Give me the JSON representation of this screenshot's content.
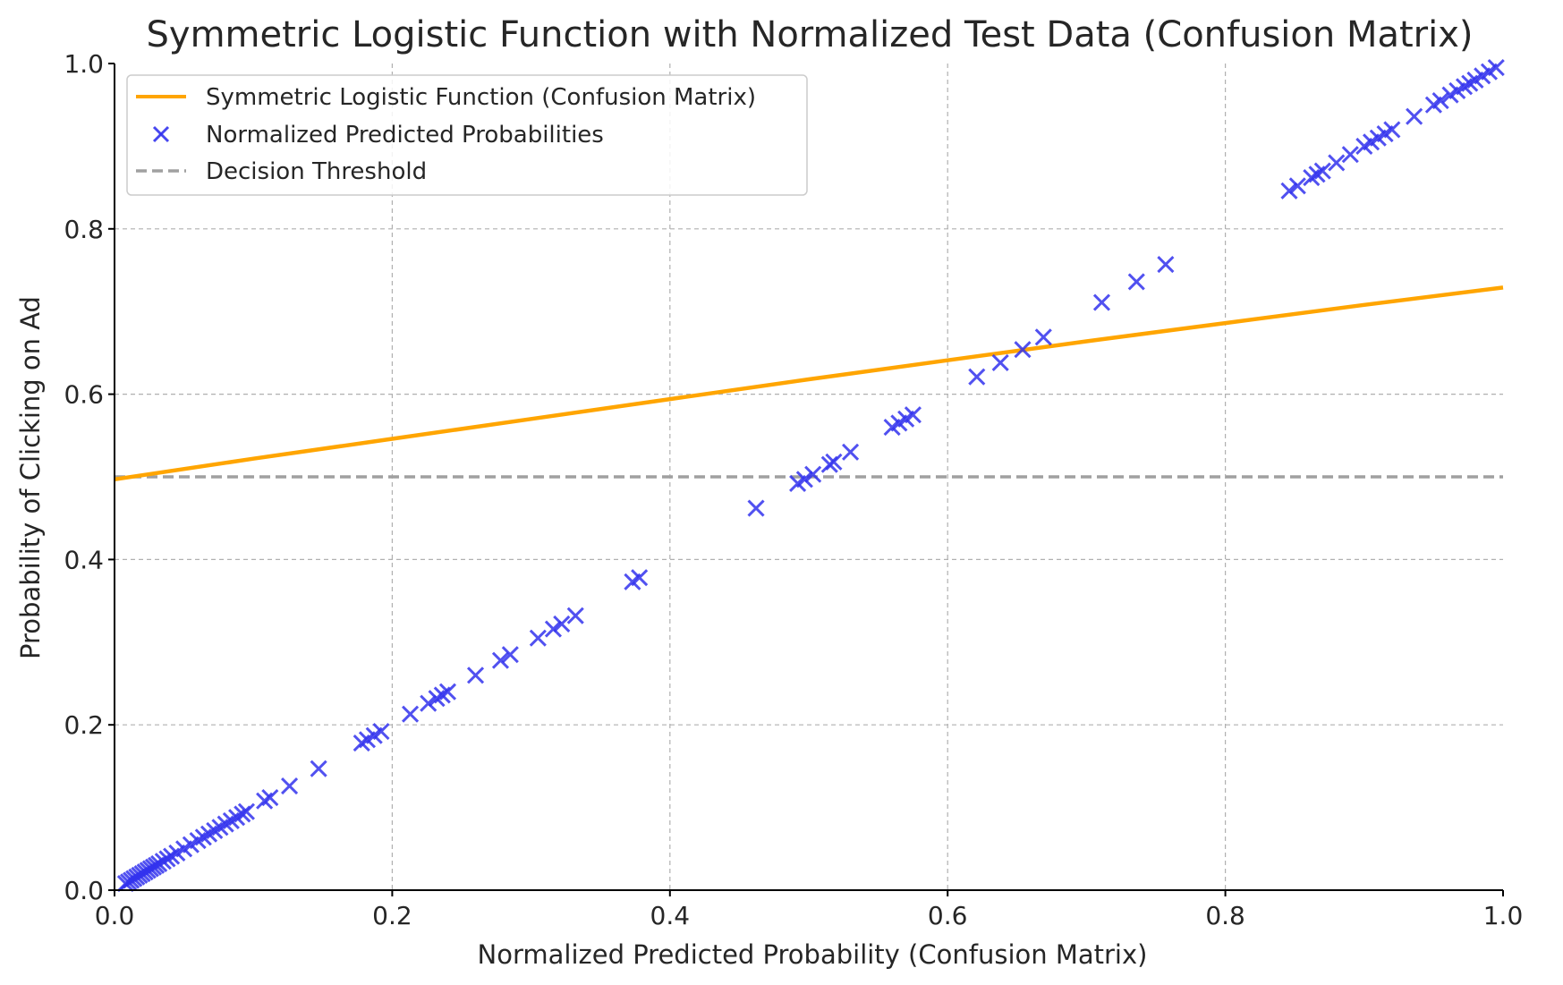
{
  "chart_data": {
    "type": "line",
    "title": "Symmetric Logistic Function with Normalized Test Data (Confusion Matrix)",
    "xlabel": "Normalized Predicted Probability (Confusion Matrix)",
    "ylabel": "Probability of Clicking on Ad",
    "xlim": [
      0,
      1
    ],
    "ylim": [
      0,
      1
    ],
    "x_ticks": [
      "0.0",
      "0.2",
      "0.4",
      "0.6",
      "0.8",
      "1.0"
    ],
    "y_ticks": [
      "0.0",
      "0.2",
      "0.4",
      "0.6",
      "0.8",
      "1.0"
    ],
    "grid": true,
    "legend_position": "top-left",
    "legend": [
      {
        "label": "Symmetric Logistic Function (Confusion Matrix)",
        "type": "line",
        "color": "#FFA500"
      },
      {
        "label": "Normalized Predicted Probabilities",
        "type": "scatter",
        "marker": "x",
        "color": "#3333EE"
      },
      {
        "label": "Decision Threshold",
        "type": "dashed-line",
        "color": "#A0A0A0"
      }
    ],
    "series": [
      {
        "name": "Symmetric Logistic Function (Confusion Matrix)",
        "type": "line",
        "color": "#FFA500",
        "x": [
          0.0,
          0.1,
          0.2,
          0.3,
          0.4,
          0.5,
          0.6,
          0.7,
          0.8,
          0.9,
          1.0
        ],
        "y": [
          0.497,
          0.522,
          0.546,
          0.57,
          0.594,
          0.618,
          0.641,
          0.664,
          0.686,
          0.708,
          0.729
        ]
      },
      {
        "name": "Normalized Predicted Probabilities",
        "type": "scatter",
        "marker": "x",
        "color": "#3333EE",
        "x": [
          0.008,
          0.01,
          0.012,
          0.014,
          0.016,
          0.018,
          0.02,
          0.022,
          0.024,
          0.026,
          0.028,
          0.03,
          0.032,
          0.035,
          0.038,
          0.041,
          0.045,
          0.05,
          0.055,
          0.06,
          0.064,
          0.068,
          0.072,
          0.076,
          0.08,
          0.084,
          0.088,
          0.092,
          0.095,
          0.108,
          0.112,
          0.126,
          0.147,
          0.178,
          0.182,
          0.187,
          0.192,
          0.213,
          0.226,
          0.232,
          0.236,
          0.24,
          0.26,
          0.278,
          0.285,
          0.305,
          0.316,
          0.322,
          0.332,
          0.373,
          0.378,
          0.462,
          0.492,
          0.497,
          0.503,
          0.515,
          0.518,
          0.53,
          0.56,
          0.565,
          0.57,
          0.575,
          0.621,
          0.638,
          0.654,
          0.669,
          0.711,
          0.736,
          0.757,
          0.846,
          0.852,
          0.862,
          0.866,
          0.87,
          0.88,
          0.89,
          0.9,
          0.905,
          0.91,
          0.915,
          0.92,
          0.936,
          0.95,
          0.955,
          0.962,
          0.967,
          0.972,
          0.976,
          0.98,
          0.985,
          0.99,
          0.995
        ],
        "y": [
          0.008,
          0.01,
          0.012,
          0.014,
          0.016,
          0.018,
          0.02,
          0.022,
          0.024,
          0.026,
          0.028,
          0.03,
          0.032,
          0.035,
          0.038,
          0.041,
          0.045,
          0.05,
          0.055,
          0.06,
          0.064,
          0.068,
          0.072,
          0.076,
          0.08,
          0.084,
          0.088,
          0.092,
          0.095,
          0.108,
          0.112,
          0.126,
          0.147,
          0.178,
          0.182,
          0.187,
          0.192,
          0.213,
          0.226,
          0.232,
          0.236,
          0.24,
          0.26,
          0.278,
          0.285,
          0.305,
          0.316,
          0.322,
          0.332,
          0.373,
          0.378,
          0.462,
          0.492,
          0.497,
          0.503,
          0.515,
          0.518,
          0.53,
          0.56,
          0.565,
          0.57,
          0.575,
          0.621,
          0.638,
          0.654,
          0.669,
          0.711,
          0.736,
          0.757,
          0.846,
          0.852,
          0.862,
          0.866,
          0.87,
          0.88,
          0.89,
          0.9,
          0.905,
          0.91,
          0.915,
          0.92,
          0.936,
          0.95,
          0.955,
          0.962,
          0.967,
          0.972,
          0.976,
          0.98,
          0.985,
          0.99,
          0.995
        ]
      },
      {
        "name": "Decision Threshold",
        "type": "hline",
        "color": "#A0A0A0",
        "y": 0.5
      }
    ]
  }
}
